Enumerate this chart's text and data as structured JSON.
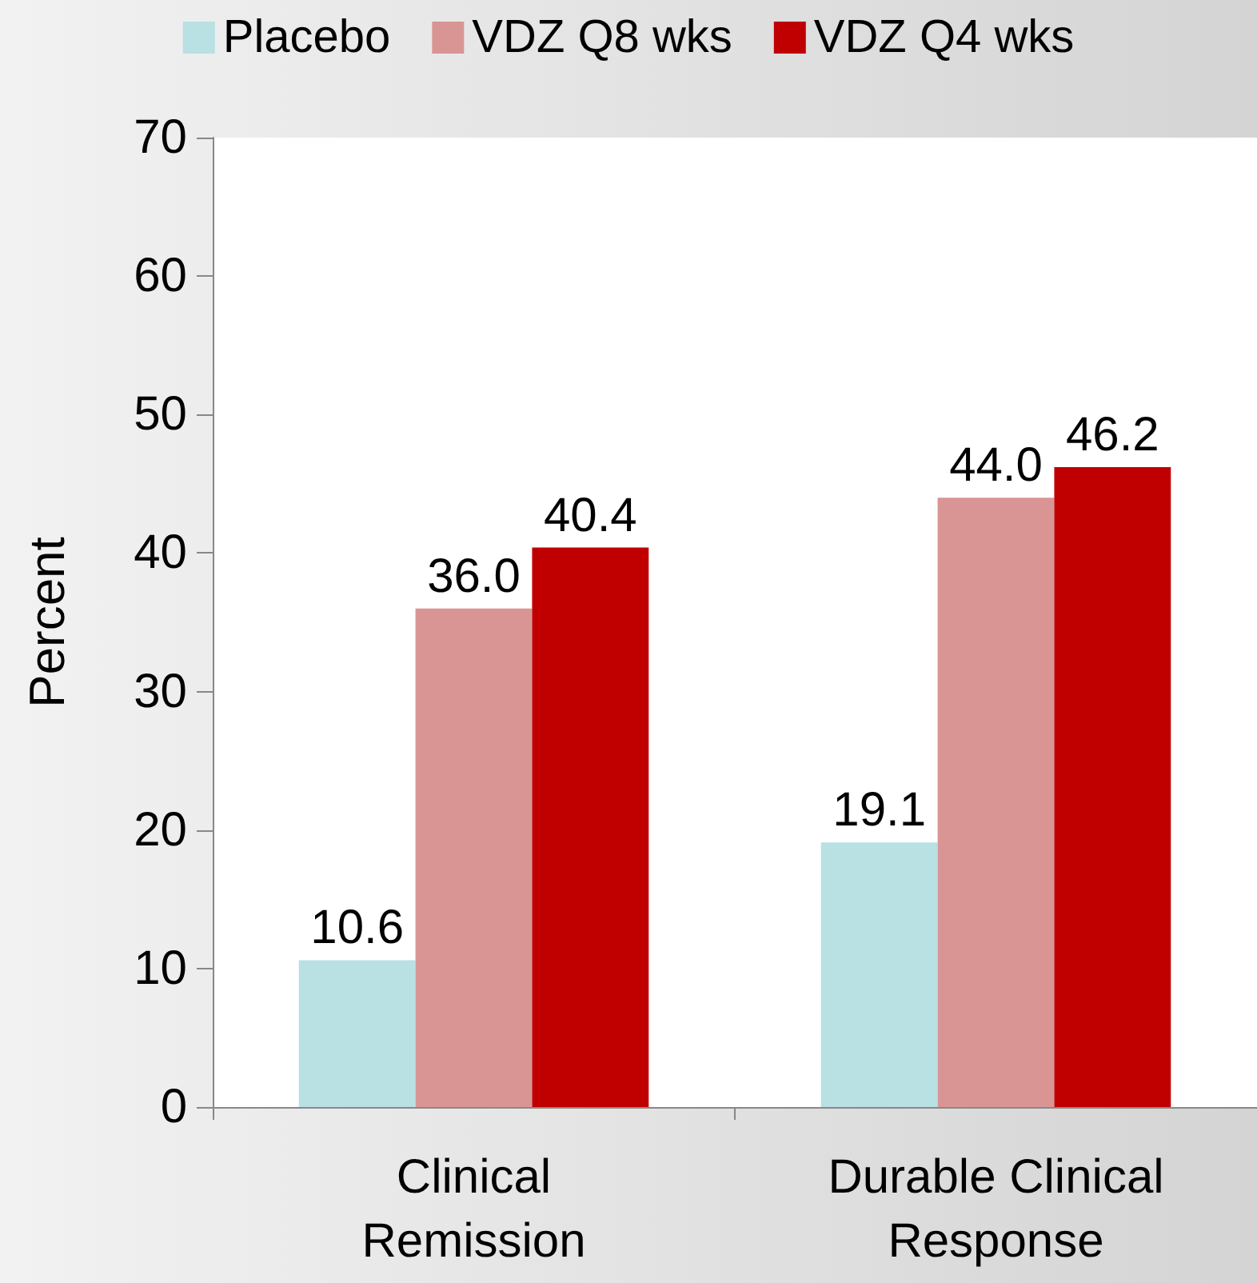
{
  "chart_data": {
    "type": "bar",
    "ylabel": "Percent",
    "categories": [
      "Clinical\nRemission",
      "Durable Clinical\nResponse"
    ],
    "series": [
      {
        "name": "Placebo",
        "color": "#b9e0e3",
        "values": [
          10.6,
          19.1
        ],
        "value_labels": [
          "10.6",
          "19.1"
        ]
      },
      {
        "name": "VDZ Q8 wks",
        "color": "#d99594",
        "values": [
          36.0,
          44.0
        ],
        "value_labels": [
          "36.0",
          "44.0"
        ]
      },
      {
        "name": "VDZ Q4 wks",
        "color": "#c00000",
        "values": [
          40.4,
          46.2
        ],
        "value_labels": [
          "40.4",
          "46.2"
        ]
      }
    ],
    "ylim": [
      0,
      70
    ],
    "yticks": [
      0,
      10,
      20,
      30,
      40,
      50,
      60,
      70
    ],
    "grid": false,
    "legend": "top"
  }
}
